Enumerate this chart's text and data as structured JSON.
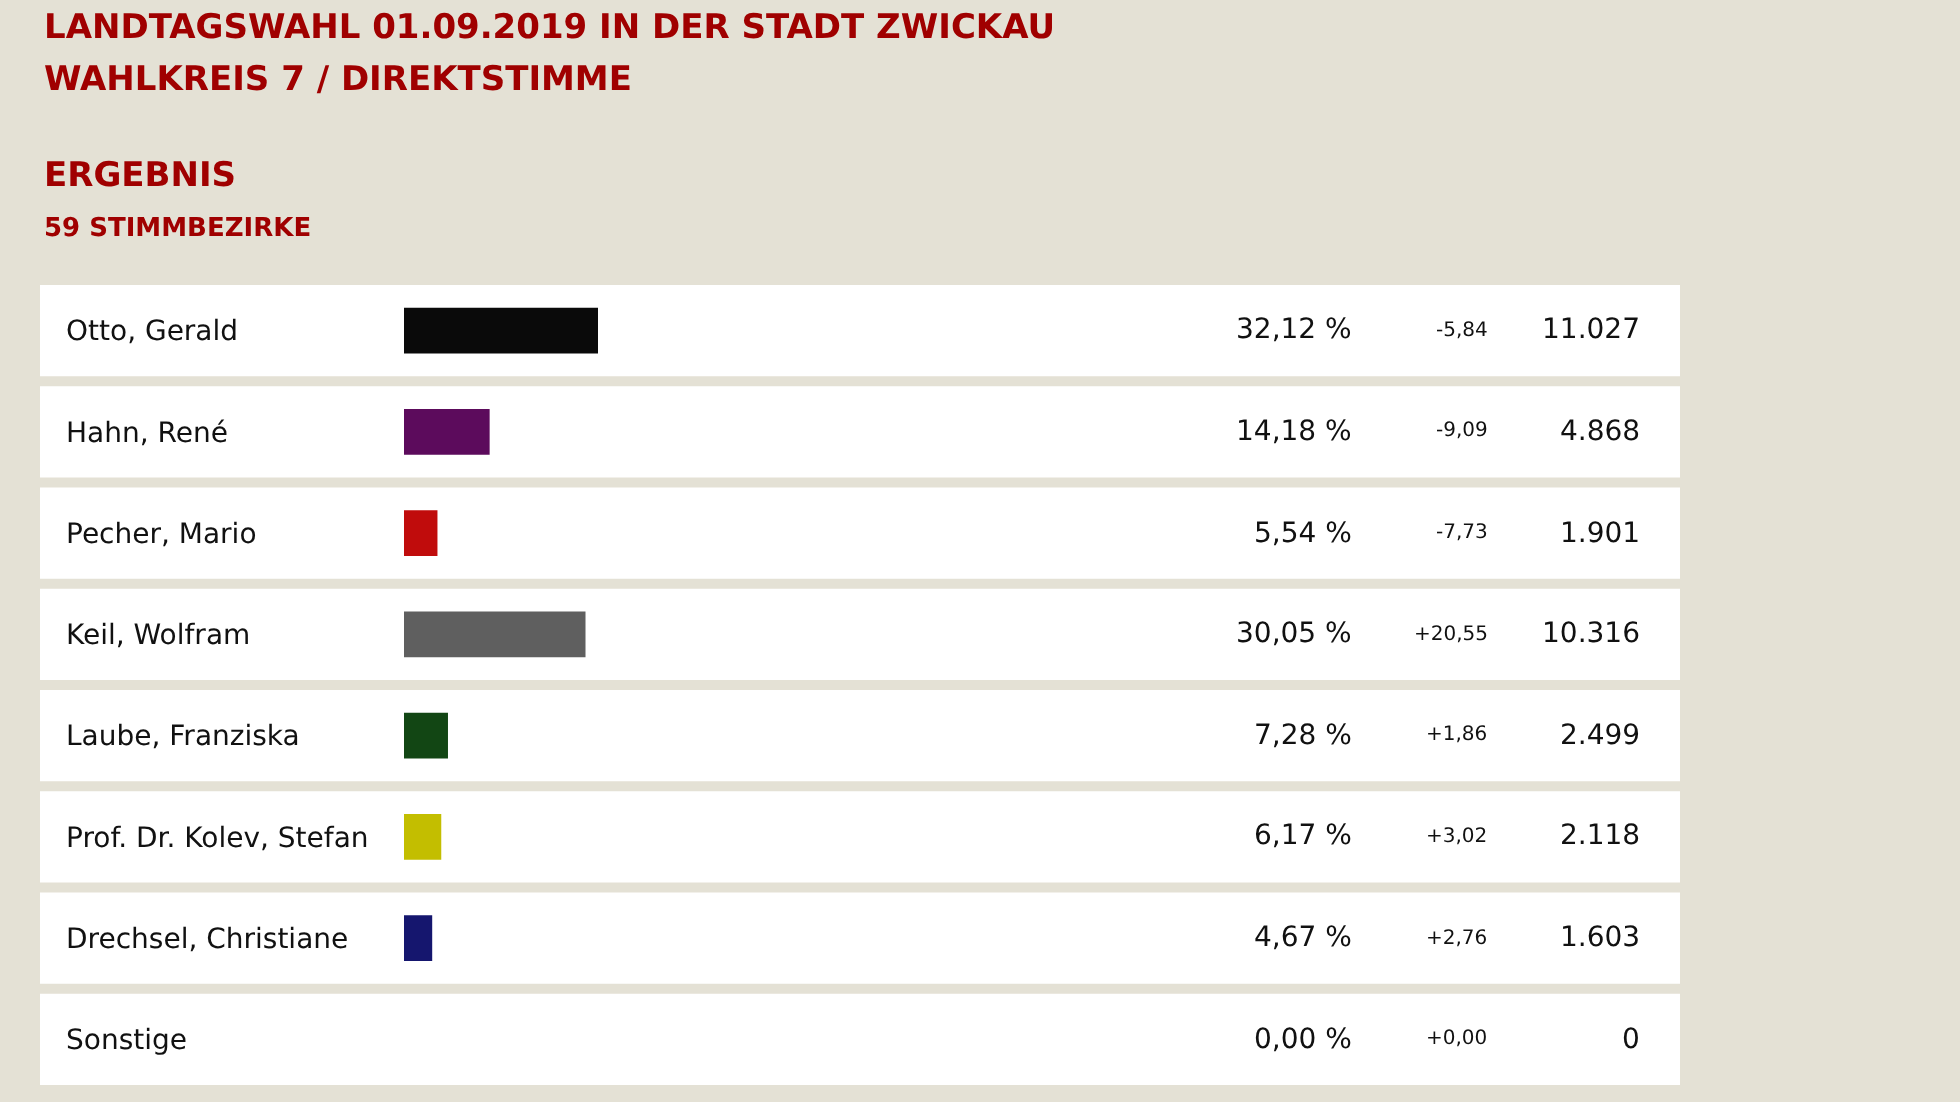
{
  "chart_data": {
    "type": "bar",
    "orientation": "horizontal",
    "title": "LANDTAGSWAHL 01.09.2019 IN DER STADT ZWICKAU",
    "subtitle": "WAHLKREIS 7 / DIREKTSTIMME",
    "categories": [
      "Otto, Gerald",
      "Hahn, René",
      "Pecher, Mario",
      "Keil, Wolfram",
      "Laube, Franziska",
      "Prof. Dr. Kolev, Stefan",
      "Drechsel, Christiane",
      "Sonstige"
    ],
    "values": [
      32.12,
      14.18,
      5.54,
      30.05,
      7.28,
      6.17,
      4.67,
      0.0
    ],
    "value_labels": [
      "32,12 %",
      "14,18 %",
      "5,54 %",
      "30,05 %",
      "7,28 %",
      "6,17 %",
      "4,67 %",
      "0,00 %"
    ],
    "colors": [
      "#0a0a0a",
      "#5c0b5c",
      "#c00c0c",
      "#5f5f5f",
      "#124614",
      "#c3be00",
      "#15166e",
      "#888888"
    ],
    "annotations": [
      "ERGEBNIS",
      "59 STIMMBEZIRKE",
      "-5,84",
      "11.027",
      "-9,09",
      "4.868",
      "-7,73",
      "1.901",
      "+20,55",
      "10.316",
      "+1,86",
      "2.499",
      "+3,02",
      "2.118",
      "+2,76",
      "1.603",
      "+0,00",
      "0"
    ],
    "tick_labels": "y"
  }
}
